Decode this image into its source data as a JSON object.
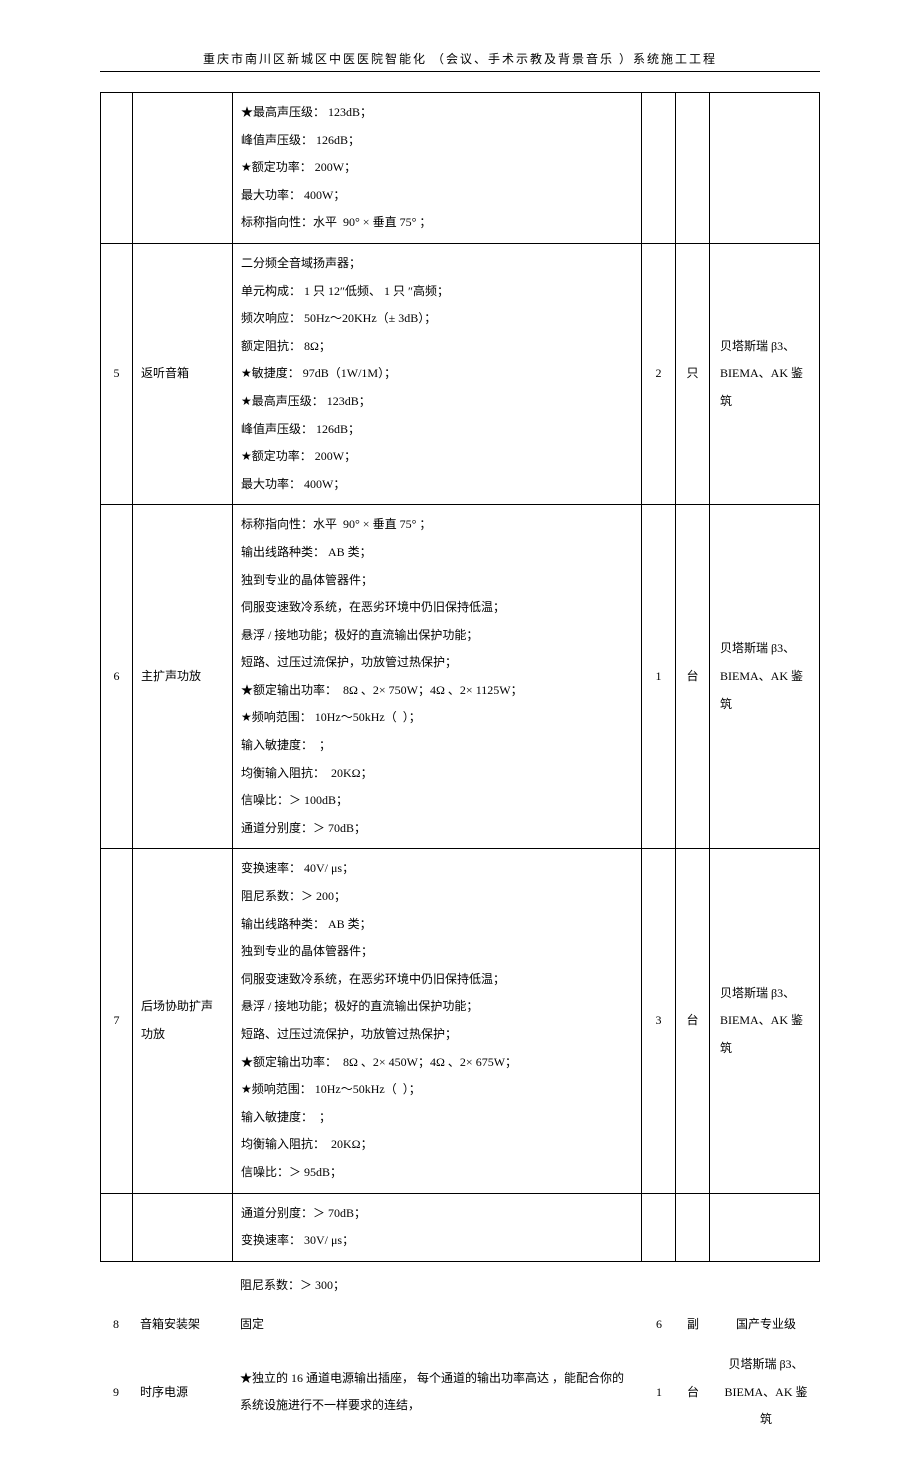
{
  "header": "重庆市南川区新城区中医医院智能化  （会议、手术示教及背景音乐  ）系统施工工程",
  "rows": [
    {
      "idx": "",
      "name": "",
      "spec": "★最高声压级： 123dB；\n峰值声压级： 126dB；\n★额定功率： 200W；\n最大功率： 400W；\n标称指向性：水平  90° × 垂直 75° ；",
      "qty": "",
      "unit": "",
      "brand": ""
    },
    {
      "idx": "5",
      "name": "返听音箱",
      "spec": "二分频全音域扬声器；\n单元构成： 1 只 12″低频、 1 只 ″高频；\n频次响应： 50Hz～20KHz（± 3dB）；\n额定阻抗： 8Ω；\n★敏捷度： 97dB（1W/1M）；\n★最高声压级： 123dB；\n峰值声压级： 126dB；\n★额定功率： 200W；\n最大功率： 400W；",
      "qty": "2",
      "unit": "只",
      "brand": "贝塔斯瑞 β3、BIEMA、AK 鉴筑"
    },
    {
      "idx": "6",
      "name": "主扩声功放",
      "spec": "标称指向性：水平  90° × 垂直 75° ；\n输出线路种类： AB 类；\n独到专业的晶体管器件；\n伺服变速致冷系统，在恶劣环境中仍旧保持低温；\n悬浮 / 接地功能；极好的直流输出保护功能；\n短路、过压过流保护，功放管过热保护；\n★额定输出功率：  8Ω 、2× 750W；4Ω 、2× 1125W；\n★频响范围： 10Hz～50kHz（  ）；\n输入敏捷度：  ；\n均衡输入阻抗：  20KΩ；\n信噪比：＞ 100dB；\n通道分别度：＞ 70dB；",
      "qty": "1",
      "unit": "台",
      "brand": "贝塔斯瑞 β3、BIEMA、AK 鉴筑"
    },
    {
      "idx": "7",
      "name": "后场协助扩声功放",
      "spec": "变换速率： 40V/ μs；\n阻尼系数：＞ 200；\n输出线路种类： AB 类；\n独到专业的晶体管器件；\n伺服变速致冷系统，在恶劣环境中仍旧保持低温；\n悬浮 / 接地功能；极好的直流输出保护功能；\n短路、过压过流保护，功放管过热保护；\n★额定输出功率：  8Ω 、2× 450W；4Ω 、2× 675W；\n★频响范围： 10Hz～50kHz（  ）；\n输入敏捷度：  ；\n均衡输入阻抗：  20KΩ；\n信噪比：＞ 95dB；",
      "qty": "3",
      "unit": "台",
      "brand": "贝塔斯瑞 β3、BIEMA、AK 鉴筑"
    },
    {
      "idx": "",
      "name": "",
      "spec": "通道分别度：＞ 70dB；\n变换速率： 30V/ μs；",
      "qty": "",
      "unit": "",
      "brand": ""
    }
  ],
  "tail": [
    {
      "idx": "",
      "name": "",
      "spec": "阻尼系数：＞ 300；",
      "qty": "",
      "unit": "",
      "brand": ""
    },
    {
      "idx": "8",
      "name": "音箱安装架",
      "spec": "固定",
      "qty": "6",
      "unit": "副",
      "brand": "国产专业级"
    },
    {
      "idx": "9",
      "name": "时序电源",
      "spec": "★独立的 16 通道电源输出插座， 每个通道的输出功率高达 ，能配合你的系统设施进行不一样要求的连结，",
      "qty": "1",
      "unit": "台",
      "brand": "贝塔斯瑞 β3、BIEMA、AK 鉴筑"
    }
  ]
}
